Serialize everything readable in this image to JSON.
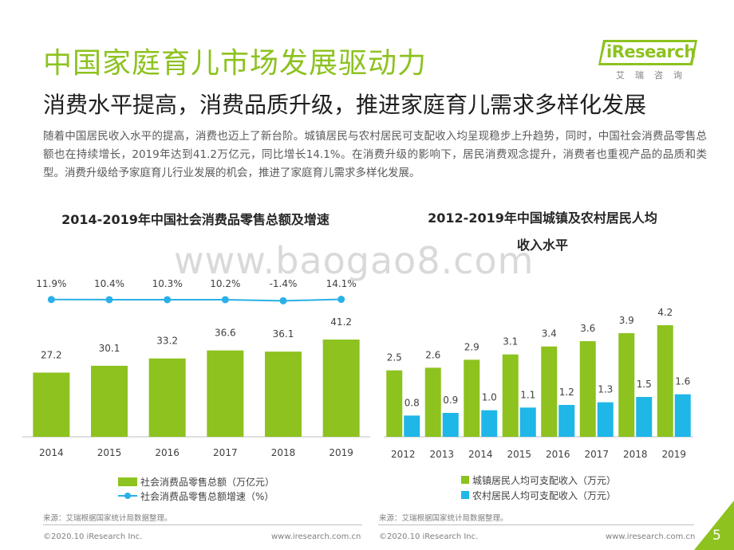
{
  "header": {
    "title": "中国家庭育儿市场发展驱动力",
    "subtitle": "消费水平提高，消费品质升级，推进家庭育儿需求多样化发展",
    "body": "随着中国居民收入水平的提高，消费也迈上了新台阶。城镇居民与农村居民可支配收入均呈现稳步上升趋势，同时，中国社会消费品零售总额也在持续增长，2019年达到41.2万亿元，同比增长14.1%。在消费升级的影响下，居民消费观念提升，消费者也重视产品的品质和类型。消费升级给予家庭育儿行业发展的机会，推进了家庭育儿需求多样化发展。"
  },
  "logo": {
    "text": "iResearch",
    "sub": "艾瑞咨询"
  },
  "watermark": "www.baogao8.com",
  "colors": {
    "green": "#8dc21f",
    "blue": "#1fb6e8",
    "line_blue": "#2ab0e8"
  },
  "chart_data": [
    {
      "type": "bar",
      "title": "2014-2019年中国社会消费品零售总额及增速",
      "categories": [
        "2014",
        "2015",
        "2016",
        "2017",
        "2018",
        "2019"
      ],
      "series": [
        {
          "name": "社会消费品零售总额（万亿元）",
          "values": [
            27.2,
            30.1,
            33.2,
            36.6,
            36.1,
            41.2
          ],
          "labels": [
            "27.2",
            "30.1",
            "33.2",
            "36.6",
            "36.1",
            "41.2"
          ]
        },
        {
          "name": "社会消费品零售总额增速（%）",
          "type": "line",
          "values": [
            11.9,
            10.4,
            10.3,
            10.2,
            -1.4,
            14.1
          ],
          "labels": [
            "11.9%",
            "10.4%",
            "10.3%",
            "10.2%",
            "-1.4%",
            "14.1%"
          ]
        }
      ],
      "source": "来源：艾瑞根据国家统计局数据整理。"
    },
    {
      "type": "bar",
      "title_line1": "2012-2019年中国城镇及农村居民人均",
      "title_line2": "收入水平",
      "categories": [
        "2012",
        "2013",
        "2014",
        "2015",
        "2016",
        "2017",
        "2018",
        "2019"
      ],
      "series": [
        {
          "name": "城镇居民人均可支配收入（万元）",
          "values": [
            2.5,
            2.6,
            2.9,
            3.1,
            3.4,
            3.6,
            3.9,
            4.2
          ],
          "labels": [
            "2.5",
            "2.6",
            "2.9",
            "3.1",
            "3.4",
            "3.6",
            "3.9",
            "4.2"
          ]
        },
        {
          "name": "农村居民人均可支配收入（万元）",
          "values": [
            0.8,
            0.9,
            1.0,
            1.1,
            1.2,
            1.3,
            1.5,
            1.6
          ],
          "labels": [
            "0.8",
            "0.9",
            "1.0",
            "1.1",
            "1.2",
            "1.3",
            "1.5",
            "1.6"
          ]
        }
      ],
      "source": "来源：艾瑞根据国家统计局数据整理。"
    }
  ],
  "footer": {
    "copyright": "©2020.10 iResearch Inc.",
    "url": "www.iresearch.com.cn",
    "page": "5"
  }
}
